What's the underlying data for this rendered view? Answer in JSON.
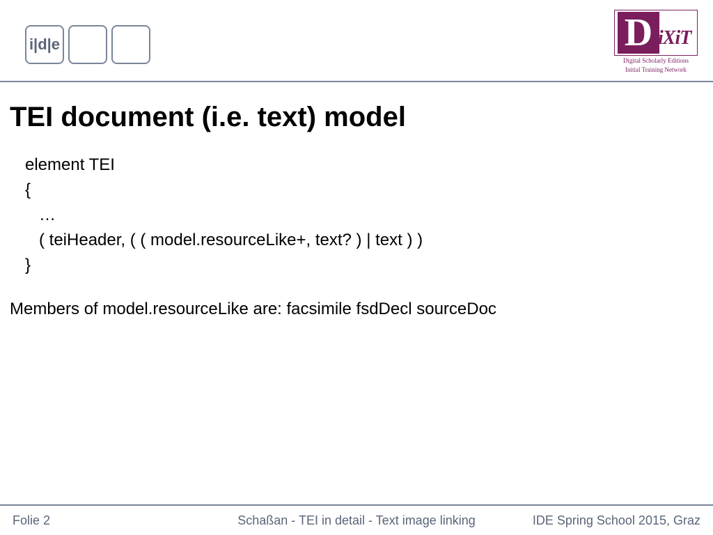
{
  "header": {
    "ide_label": "i|d|e",
    "logo": {
      "big_letter": "D",
      "rest": "iXiT",
      "subtitle_line1": "Digital Scholarly Editions",
      "subtitle_line2": "Initial Training Network"
    }
  },
  "content": {
    "title": "TEI document (i.e. text) model",
    "code": "element TEI\n{\n   …\n   ( teiHeader, ( ( model.resourceLike+, text? ) | text ) )\n}",
    "body": "Members of model.resourceLike are: facsimile fsdDecl sourceDoc"
  },
  "footer": {
    "left": "Folie 2",
    "center": "Schaßan - TEI in detail - Text image linking",
    "right": "IDE Spring School 2015, Graz"
  },
  "colors": {
    "border": "#7a8599",
    "logo_purple": "#7a1e5e",
    "footer_text": "#5a6578"
  }
}
